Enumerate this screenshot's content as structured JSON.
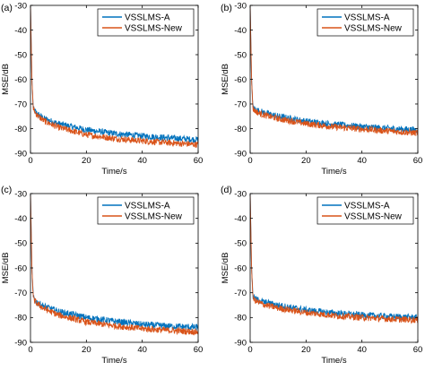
{
  "chart_data": [
    {
      "type": "line",
      "panel_label": "(a)",
      "xlabel": "Time/s",
      "ylabel": "MSE/dB",
      "xlim": [
        0,
        60
      ],
      "ylim": [
        -90,
        -30
      ],
      "xticks": [
        "0",
        "20",
        "40",
        "60"
      ],
      "yticks": [
        "-30",
        "-40",
        "-50",
        "-60",
        "-70",
        "-80",
        "-90"
      ],
      "legend_position": "top-right",
      "grid": false,
      "series": [
        {
          "name": "VSSLMS-A",
          "color": "#0072BD",
          "x": [
            0,
            0.5,
            1,
            2,
            3,
            5,
            10,
            20,
            30,
            40,
            50,
            60
          ],
          "y": [
            -30,
            -60,
            -72,
            -73.5,
            -74.5,
            -76,
            -78,
            -80.5,
            -82,
            -83,
            -83.8,
            -84.5
          ]
        },
        {
          "name": "VSSLMS-New",
          "color": "#D95319",
          "x": [
            0,
            0.5,
            1,
            2,
            3,
            5,
            10,
            20,
            30,
            40,
            50,
            60
          ],
          "y": [
            -30,
            -60,
            -72,
            -74,
            -75.2,
            -77,
            -79.5,
            -82.5,
            -84,
            -85,
            -85.8,
            -86.5
          ]
        }
      ]
    },
    {
      "type": "line",
      "panel_label": "(b)",
      "xlabel": "Time/s",
      "ylabel": "MSE/dB",
      "xlim": [
        0,
        60
      ],
      "ylim": [
        -90,
        -30
      ],
      "xticks": [
        "0",
        "20",
        "40",
        "60"
      ],
      "yticks": [
        "-30",
        "-40",
        "-50",
        "-60",
        "-70",
        "-80",
        "-90"
      ],
      "legend_position": "top-right",
      "grid": false,
      "series": [
        {
          "name": "VSSLMS-A",
          "color": "#0072BD",
          "x": [
            0,
            0.5,
            1,
            2,
            3,
            5,
            10,
            20,
            30,
            40,
            50,
            60
          ],
          "y": [
            -30,
            -60,
            -71.5,
            -72.2,
            -72.8,
            -73.5,
            -75,
            -77,
            -78.3,
            -79.2,
            -80,
            -80.5
          ]
        },
        {
          "name": "VSSLMS-New",
          "color": "#D95319",
          "x": [
            0,
            0.5,
            1,
            2,
            3,
            5,
            10,
            20,
            30,
            40,
            50,
            60
          ],
          "y": [
            -30,
            -60,
            -72,
            -73,
            -73.6,
            -74.5,
            -76,
            -78,
            -79.3,
            -80.2,
            -81,
            -81.8
          ]
        }
      ]
    },
    {
      "type": "line",
      "panel_label": "(c)",
      "xlabel": "Time/s",
      "ylabel": "MSE/dB",
      "xlim": [
        0,
        60
      ],
      "ylim": [
        -90,
        -30
      ],
      "xticks": [
        "0",
        "20",
        "40",
        "60"
      ],
      "yticks": [
        "-30",
        "-40",
        "-50",
        "-60",
        "-70",
        "-80",
        "-90"
      ],
      "legend_position": "top-right",
      "grid": false,
      "series": [
        {
          "name": "VSSLMS-A",
          "color": "#0072BD",
          "x": [
            0,
            0.5,
            1,
            2,
            3,
            5,
            10,
            20,
            30,
            40,
            50,
            60
          ],
          "y": [
            -30,
            -60,
            -72,
            -73.5,
            -74.3,
            -75.5,
            -77.5,
            -80,
            -81.5,
            -82.8,
            -83.5,
            -84
          ]
        },
        {
          "name": "VSSLMS-New",
          "color": "#D95319",
          "x": [
            0,
            0.5,
            1,
            2,
            3,
            5,
            10,
            20,
            30,
            40,
            50,
            60
          ],
          "y": [
            -30,
            -60,
            -72.5,
            -74,
            -75,
            -76.5,
            -79,
            -81.8,
            -83.3,
            -84.5,
            -85.2,
            -85.8
          ]
        }
      ]
    },
    {
      "type": "line",
      "panel_label": "(d)",
      "xlabel": "Time/s",
      "ylabel": "MSE/dB",
      "xlim": [
        0,
        60
      ],
      "ylim": [
        -90,
        -30
      ],
      "xticks": [
        "0",
        "20",
        "40",
        "60"
      ],
      "yticks": [
        "-30",
        "-40",
        "-50",
        "-60",
        "-70",
        "-80",
        "-90"
      ],
      "legend_position": "top-right",
      "grid": false,
      "series": [
        {
          "name": "VSSLMS-A",
          "color": "#0072BD",
          "x": [
            0,
            0.5,
            1,
            2,
            3,
            5,
            10,
            20,
            30,
            40,
            50,
            60
          ],
          "y": [
            -30,
            -60,
            -71.5,
            -72.5,
            -73,
            -73.8,
            -75,
            -77,
            -78.2,
            -79,
            -79.6,
            -80
          ]
        },
        {
          "name": "VSSLMS-New",
          "color": "#D95319",
          "x": [
            0,
            0.5,
            1,
            2,
            3,
            5,
            10,
            20,
            30,
            40,
            50,
            60
          ],
          "y": [
            -30,
            -60,
            -72.3,
            -73.3,
            -73.9,
            -74.8,
            -76.2,
            -78,
            -79.2,
            -80,
            -80.6,
            -81
          ]
        }
      ]
    }
  ]
}
